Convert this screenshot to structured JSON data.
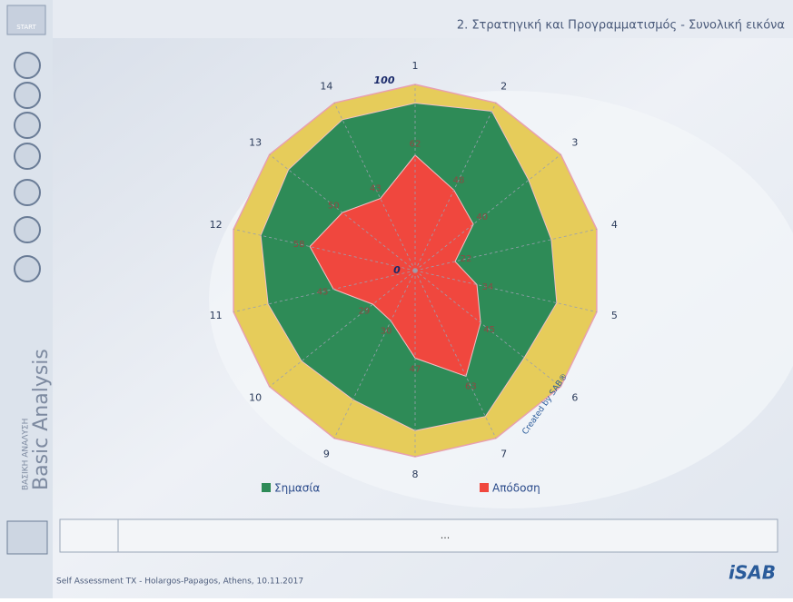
{
  "header": {
    "start": "START",
    "title": "2. Στρατηγική και Προγραμματισμός - Συνολική εικόνα"
  },
  "sidebar": {
    "title": "Basic Analysis",
    "subtitle": "ΒΑΣΙΚΗ ΑΝΑΛΥΣΗ"
  },
  "chart_data": {
    "type": "radar",
    "categories": [
      "1",
      "2",
      "3",
      "4",
      "5",
      "6",
      "7",
      "8",
      "9",
      "10",
      "11",
      "12",
      "13",
      "14"
    ],
    "rlim": [
      0,
      100
    ],
    "rticks": [
      0,
      100
    ],
    "annotation": "Created by SAB®",
    "series": [
      {
        "name": "Σημασία",
        "color": "#2e8b57",
        "values": [
          90,
          95,
          78,
          75,
          78,
          75,
          87,
          86,
          77,
          78,
          81,
          85,
          87,
          90
        ]
      },
      {
        "name": "Απόδοση",
        "color": "#f0473e",
        "values": [
          62,
          48,
          40,
          22,
          34,
          45,
          63,
          47,
          30,
          29,
          45,
          58,
          50,
          43
        ]
      }
    ]
  },
  "panel": {
    "text": "..."
  },
  "footer": {
    "text": "Self Assessment TX - Holargos-Papagos, Athens, 10.11.2017",
    "logo": "iSAB"
  }
}
